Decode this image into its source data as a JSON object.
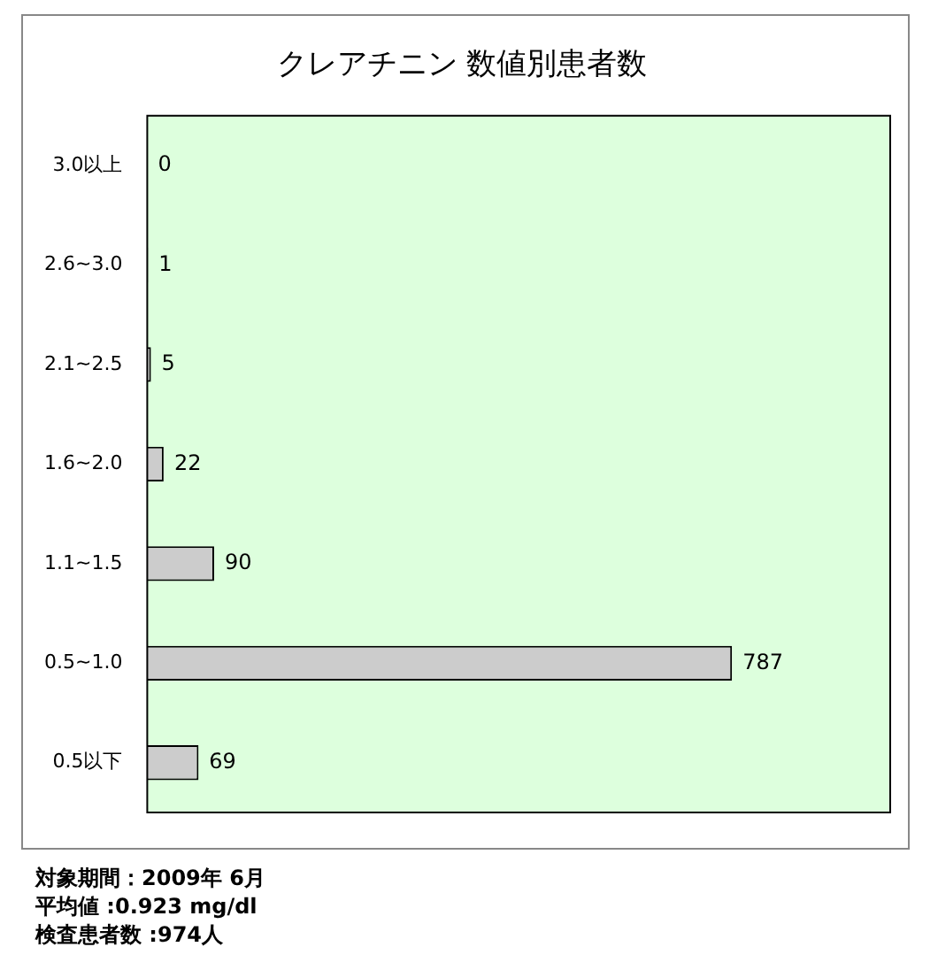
{
  "chart_data": {
    "type": "bar",
    "orientation": "horizontal",
    "title": "クレアチニン 数値別患者数",
    "categories": [
      "3.0以上",
      "2.6~3.0",
      "2.1~2.5",
      "1.6~2.0",
      "1.1~1.5",
      "0.5~1.0",
      "0.5以下"
    ],
    "values": [
      0,
      1,
      5,
      22,
      90,
      787,
      69
    ],
    "color": "#cccccc",
    "data_labels": true,
    "tick_labels": "y",
    "annotations": [
      "対象期間：2009年 6月",
      "平均値 :0.923 mg/dl",
      "検査患者数 :974人"
    ]
  }
}
